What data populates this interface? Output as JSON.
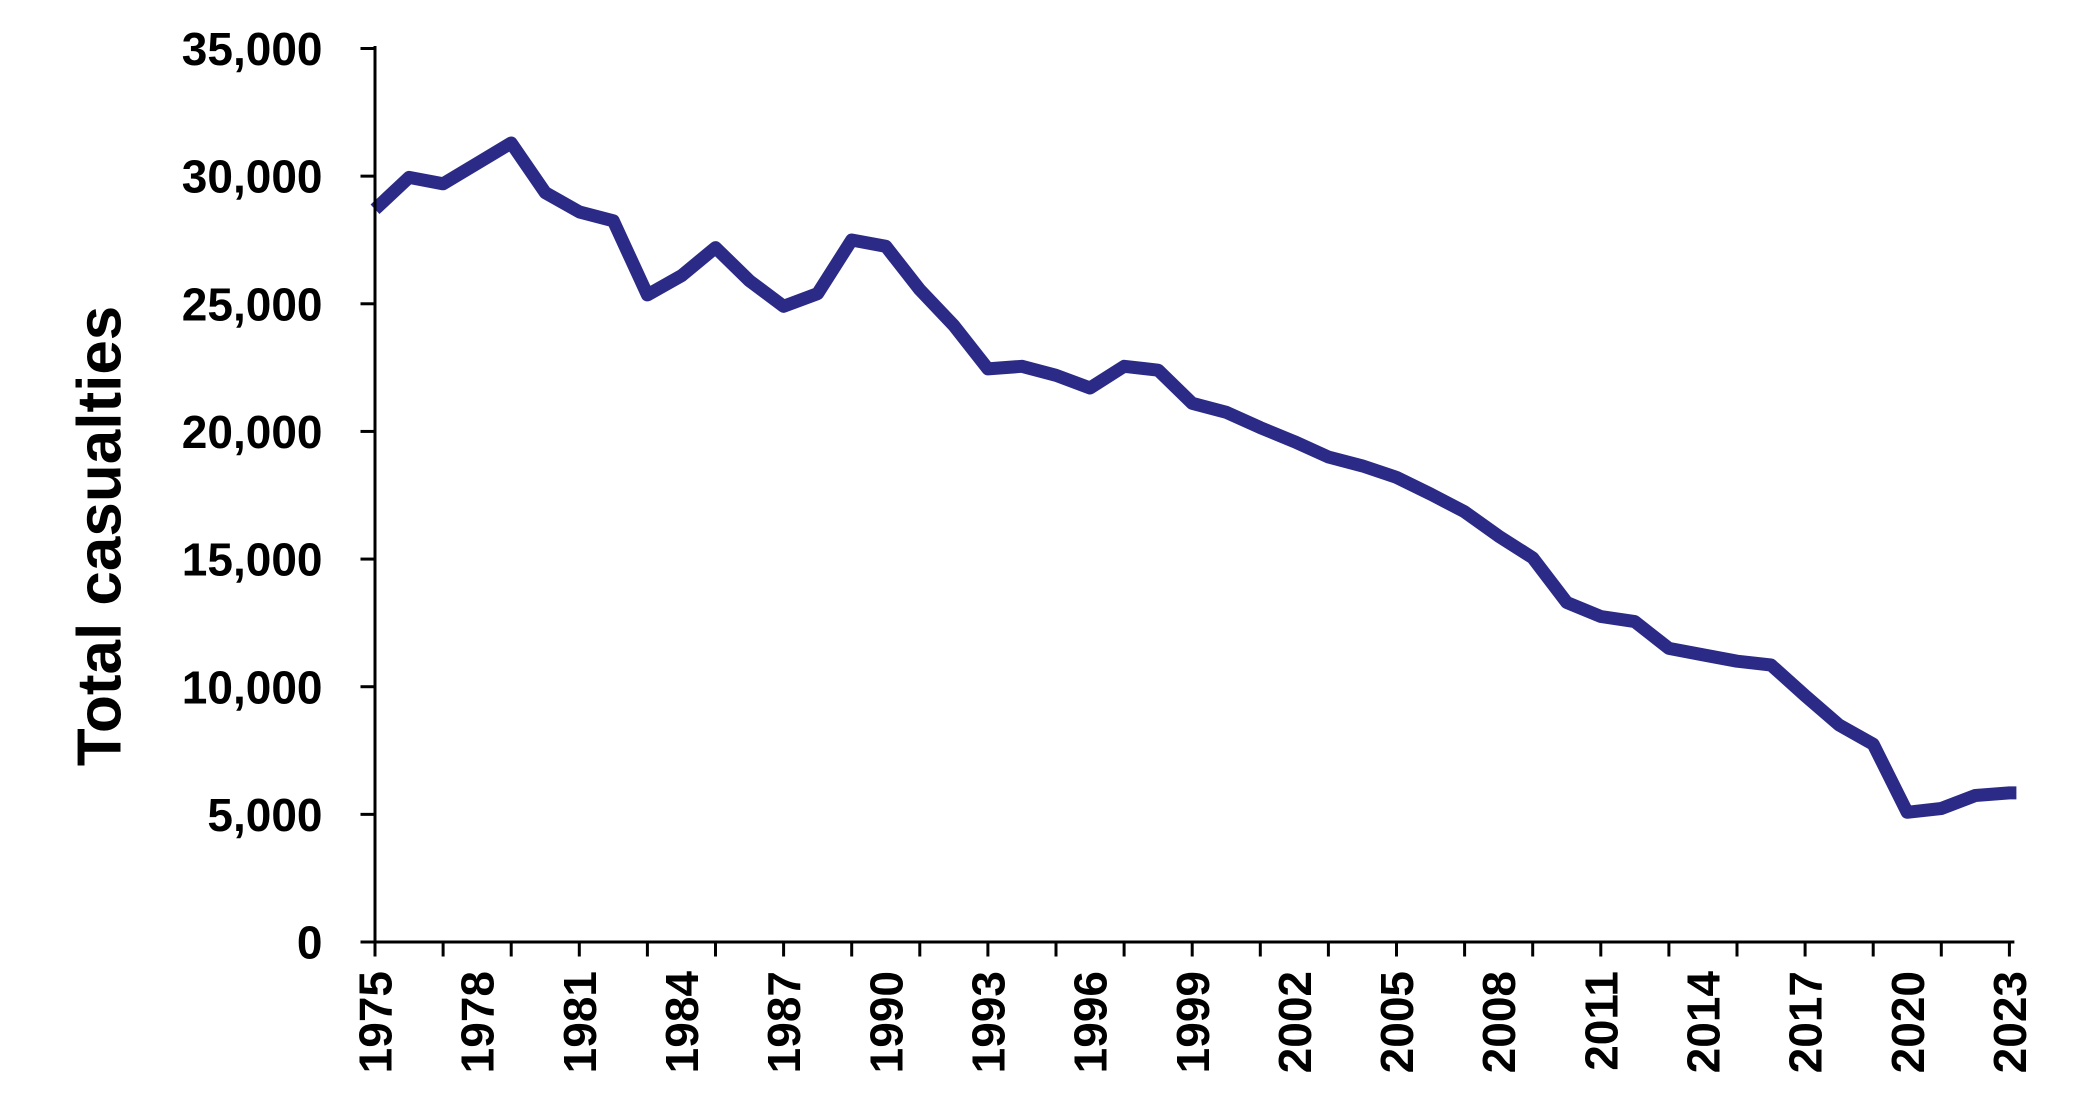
{
  "chart_data": {
    "type": "line",
    "title": "",
    "xlabel": "",
    "ylabel": "Total casualties",
    "x": [
      1975,
      1976,
      1977,
      1978,
      1979,
      1980,
      1981,
      1982,
      1983,
      1984,
      1985,
      1986,
      1987,
      1988,
      1989,
      1990,
      1991,
      1992,
      1993,
      1994,
      1995,
      1996,
      1997,
      1998,
      1999,
      2000,
      2001,
      2002,
      2003,
      2004,
      2005,
      2006,
      2007,
      2008,
      2009,
      2010,
      2011,
      2012,
      2013,
      2014,
      2015,
      2016,
      2017,
      2018,
      2019,
      2020,
      2021,
      2022,
      2023
    ],
    "series": [
      {
        "name": "Total casualties",
        "values": [
          28700,
          29950,
          29700,
          30500,
          31300,
          29350,
          28600,
          28250,
          25350,
          26100,
          27200,
          25900,
          24900,
          25400,
          27500,
          27250,
          25550,
          24150,
          22450,
          22550,
          22200,
          21700,
          22550,
          22400,
          21100,
          20750,
          20150,
          19600,
          19000,
          18650,
          18200,
          17550,
          16850,
          15900,
          15050,
          13300,
          12750,
          12550,
          11500,
          11250,
          11000,
          10850,
          9650,
          8500,
          7750,
          5080,
          5230,
          5740,
          5840
        ]
      }
    ],
    "ylim": [
      0,
      35000
    ],
    "yticks": [
      0,
      5000,
      10000,
      15000,
      20000,
      25000,
      30000,
      35000
    ],
    "ytick_labels": [
      "0",
      "5,000",
      "10,000",
      "15,000",
      "20,000",
      "25,000",
      "30,000",
      "35,000"
    ],
    "xtick_minor_interval_years": 2,
    "xtick_label_years": [
      1975,
      1978,
      1981,
      1984,
      1987,
      1990,
      1993,
      1996,
      1999,
      2002,
      2005,
      2008,
      2011,
      2014,
      2017,
      2020,
      2023
    ],
    "grid": false,
    "legend": "none",
    "line_color": "#2b2b87",
    "axis_color": "#000000",
    "text_color": "#000000",
    "background_color": "#ffffff"
  }
}
